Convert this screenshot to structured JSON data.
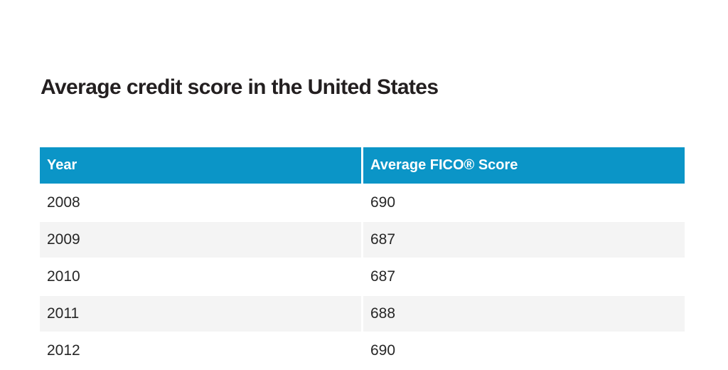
{
  "page": {
    "title": "Average credit score in the United States"
  },
  "table": {
    "headers": {
      "year": "Year",
      "score": "Average FICO® Score"
    },
    "rows": [
      {
        "year": "2008",
        "score": "690"
      },
      {
        "year": "2009",
        "score": "687"
      },
      {
        "year": "2010",
        "score": "687"
      },
      {
        "year": "2011",
        "score": "688"
      },
      {
        "year": "2012",
        "score": "690"
      }
    ]
  },
  "colors": {
    "header_background": "#0b95c7",
    "header_text": "#ffffff",
    "alternate_row_background": "#f4f4f4",
    "body_text": "#262626",
    "title_text": "#231f20",
    "page_background": "#ffffff"
  },
  "chart_data": {
    "type": "table",
    "title": "Average credit score in the United States",
    "columns": [
      "Year",
      "Average FICO® Score"
    ],
    "rows": [
      [
        "2008",
        690
      ],
      [
        "2009",
        687
      ],
      [
        "2010",
        687
      ],
      [
        "2011",
        688
      ],
      [
        "2012",
        690
      ]
    ],
    "x": [
      2008,
      2009,
      2010,
      2011,
      2012
    ],
    "values": [
      690,
      687,
      687,
      688,
      690
    ],
    "notes": "Last visible row (2012) is clipped by the bottom edge of the viewport"
  }
}
